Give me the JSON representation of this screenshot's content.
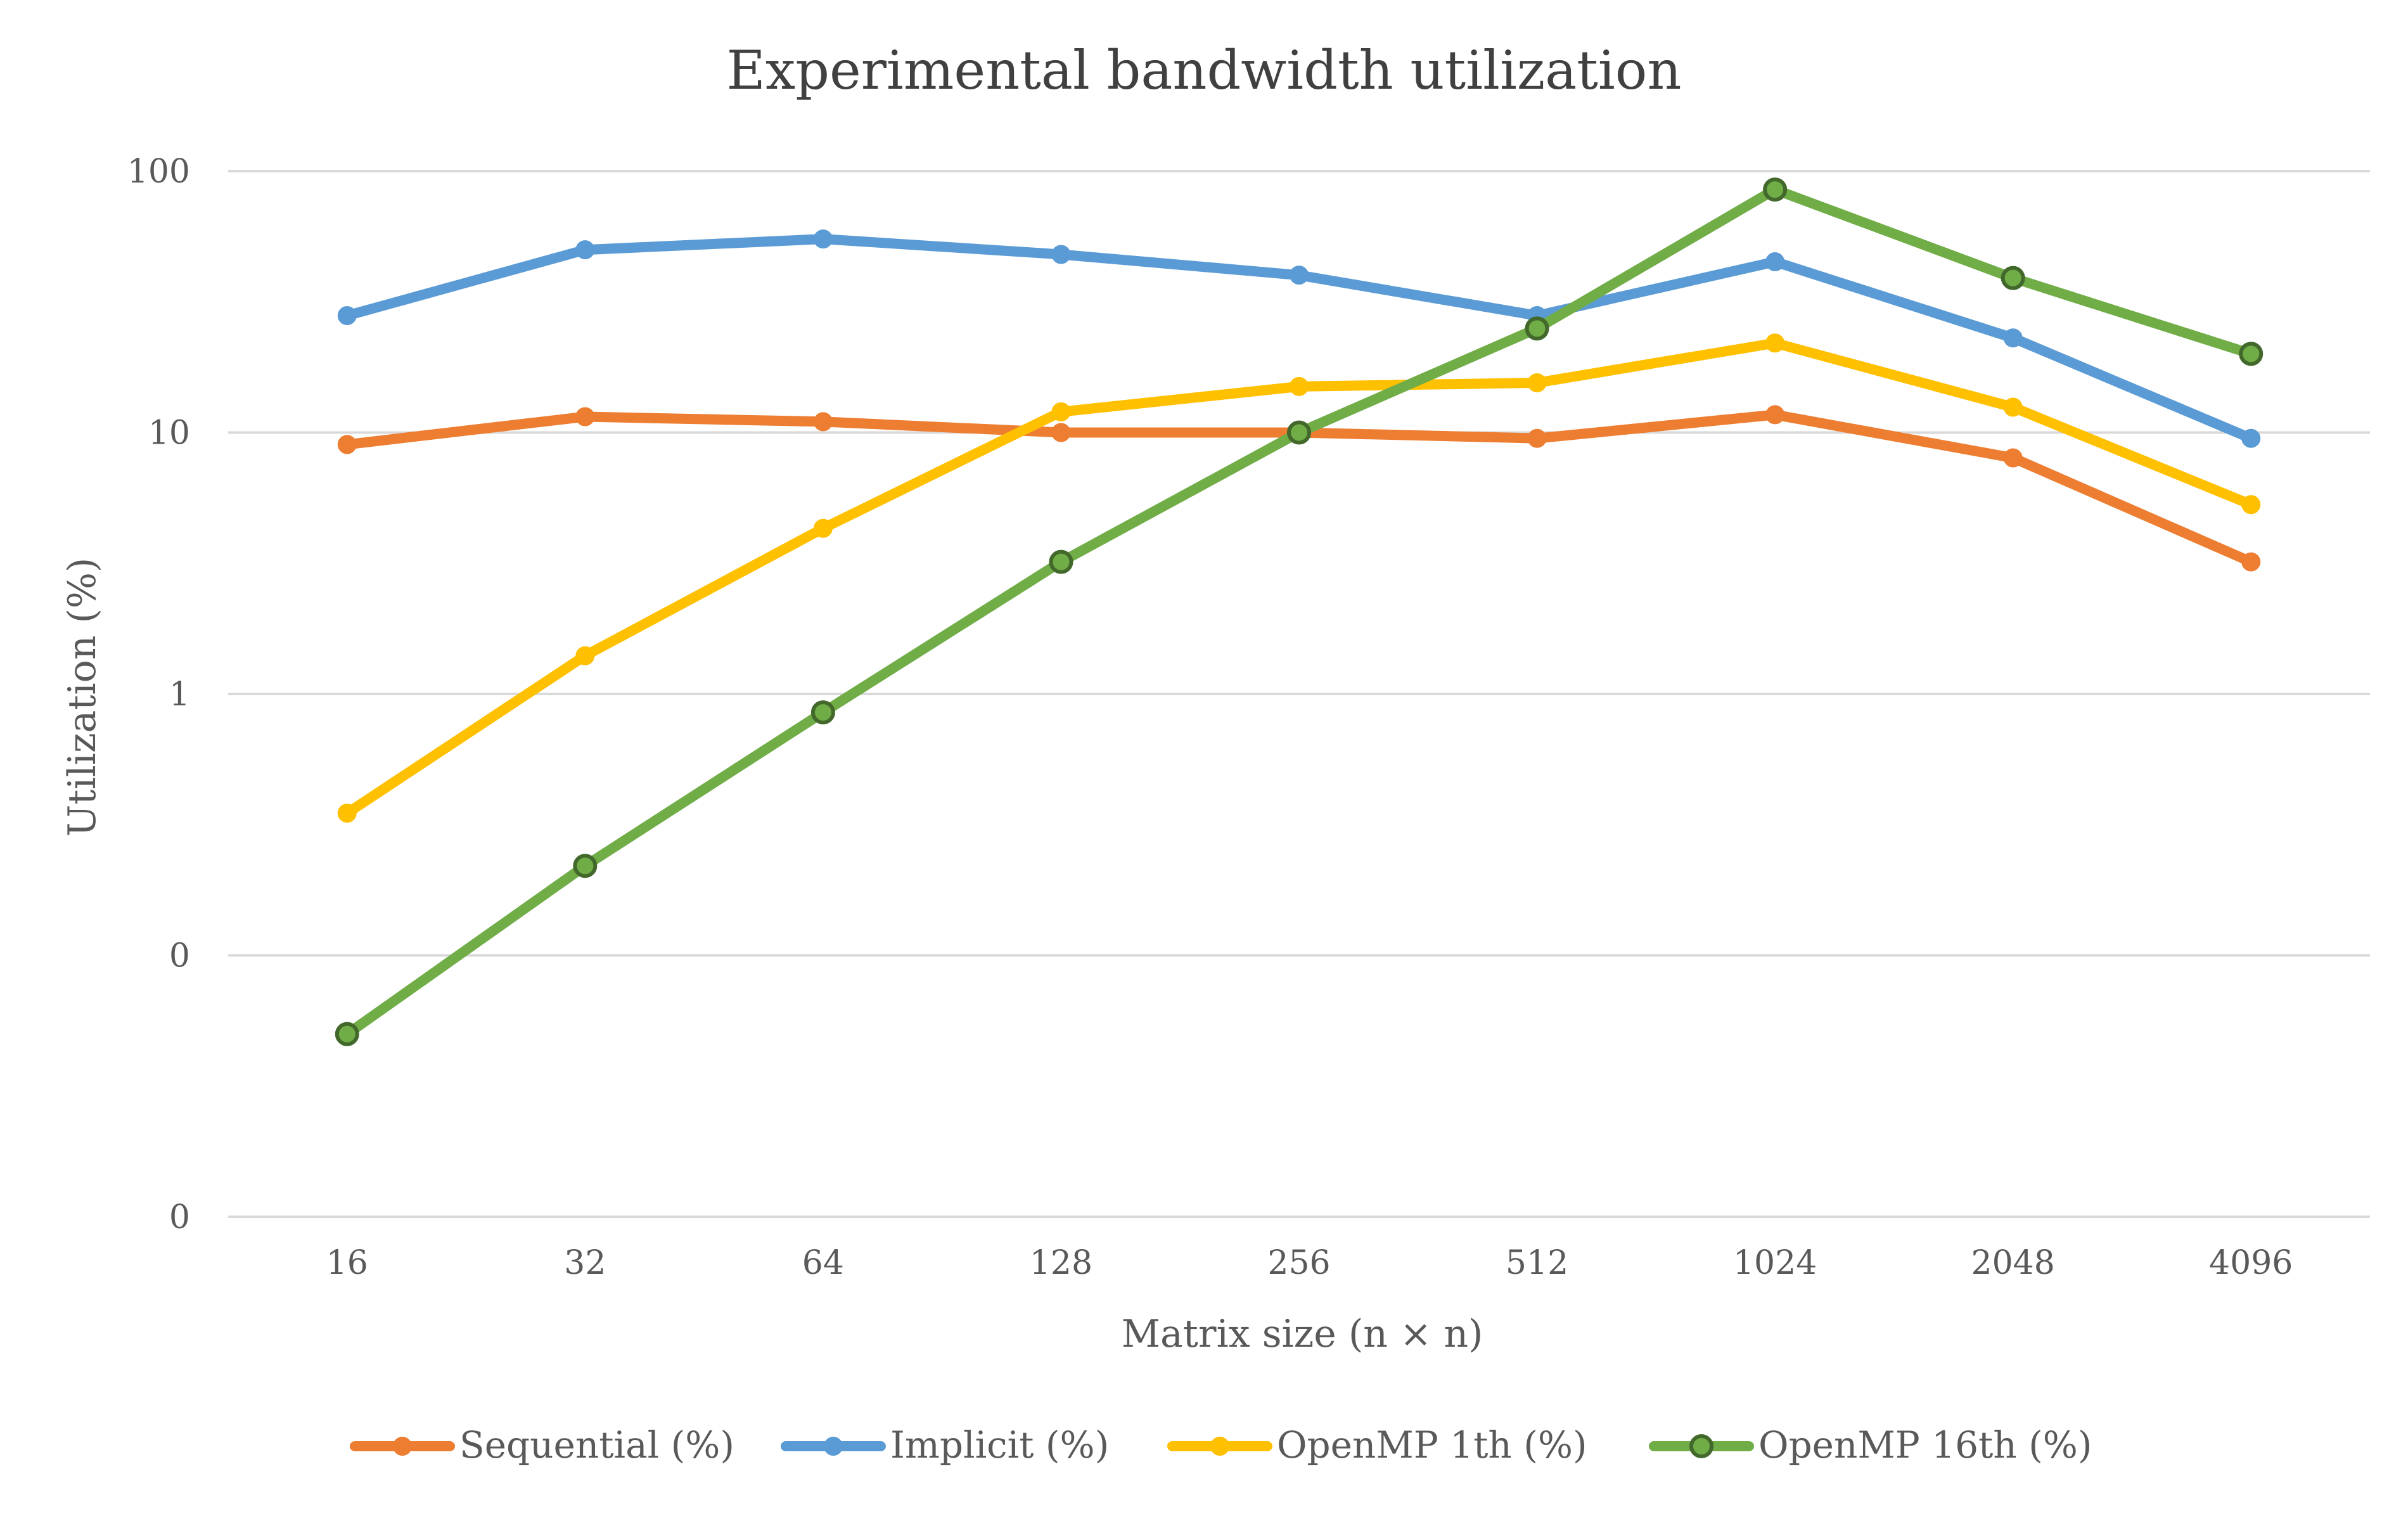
{
  "chart_data": {
    "type": "line",
    "title": "Experimental bandwidth utilization",
    "xlabel": "Matrix size (n × n)",
    "ylabel": "Utilization (%)",
    "y_scale": "log",
    "ylim": [
      0.01,
      100
    ],
    "y_tick_labels": [
      "100",
      "10",
      "1",
      "0",
      "0"
    ],
    "y_tick_values": [
      100,
      10,
      1,
      0.1,
      0.01
    ],
    "grid": true,
    "legend_position": "bottom",
    "categories": [
      "16",
      "32",
      "64",
      "128",
      "256",
      "512",
      "1024",
      "2048",
      "4096"
    ],
    "series": [
      {
        "name": "Sequential (%)",
        "color": "#ED7D31",
        "marker": "filled-circle",
        "values": [
          9.0,
          11.5,
          11.0,
          10.0,
          10.0,
          9.5,
          11.7,
          8.0,
          3.2
        ]
      },
      {
        "name": "Implicit (%)",
        "color": "#5B9BD5",
        "marker": "filled-circle",
        "values": [
          28,
          50,
          55,
          48,
          40,
          28,
          45,
          23,
          9.5
        ]
      },
      {
        "name": "OpenMP 1th (%)",
        "color": "#FFC000",
        "marker": "filled-circle",
        "values": [
          0.35,
          1.4,
          4.3,
          12.0,
          15.0,
          15.5,
          22.0,
          12.5,
          5.3
        ]
      },
      {
        "name": "OpenMP 16th (%)",
        "color": "#70AD47",
        "marker": "outlined-circle",
        "marker_edge_color": "#43682B",
        "values": [
          0.05,
          0.22,
          0.85,
          3.2,
          10.0,
          25.0,
          85.0,
          39.0,
          20.0
        ]
      }
    ]
  },
  "colors": {
    "gridline": "#D9D9D9",
    "axis_text": "#595959",
    "title_text": "#404040"
  }
}
